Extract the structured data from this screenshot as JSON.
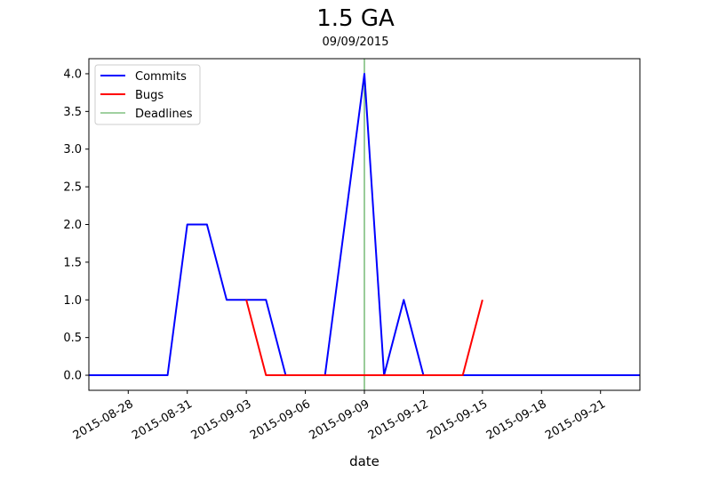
{
  "chart_data": {
    "type": "line",
    "title": "1.5 GA",
    "subtitle": "09/09/2015",
    "xlabel": "date",
    "ylabel": "",
    "x_range": [
      "2015-08-26",
      "2015-09-23"
    ],
    "ylim": [
      -0.2,
      4.2
    ],
    "y_ticks": [
      0.0,
      0.5,
      1.0,
      1.5,
      2.0,
      2.5,
      3.0,
      3.5,
      4.0
    ],
    "y_tick_labels": [
      "0.0",
      "0.5",
      "1.0",
      "1.5",
      "2.0",
      "2.5",
      "3.0",
      "3.5",
      "4.0"
    ],
    "x_ticks": [
      "2015-08-28",
      "2015-08-31",
      "2015-09-03",
      "2015-09-06",
      "2015-09-09",
      "2015-09-12",
      "2015-09-15",
      "2015-09-18",
      "2015-09-21"
    ],
    "grid": false,
    "legend_position": "top-left",
    "series": [
      {
        "name": "Commits",
        "color": "#0000ff",
        "points": [
          [
            "2015-08-26",
            0
          ],
          [
            "2015-08-30",
            0
          ],
          [
            "2015-08-31",
            2
          ],
          [
            "2015-09-01",
            2
          ],
          [
            "2015-09-02",
            1
          ],
          [
            "2015-09-03",
            1
          ],
          [
            "2015-09-04",
            1
          ],
          [
            "2015-09-05",
            0
          ],
          [
            "2015-09-07",
            0
          ],
          [
            "2015-09-09",
            4
          ],
          [
            "2015-09-10",
            0
          ],
          [
            "2015-09-11",
            1
          ],
          [
            "2015-09-12",
            0
          ],
          [
            "2015-09-23",
            0
          ]
        ]
      },
      {
        "name": "Bugs",
        "color": "#ff0000",
        "points": [
          [
            "2015-09-03",
            1
          ],
          [
            "2015-09-04",
            0
          ],
          [
            "2015-09-14",
            0
          ],
          [
            "2015-09-15",
            1
          ]
        ]
      }
    ],
    "deadlines": {
      "name": "Deadlines",
      "color": "#008000",
      "dates": [
        "2015-09-09"
      ]
    }
  }
}
